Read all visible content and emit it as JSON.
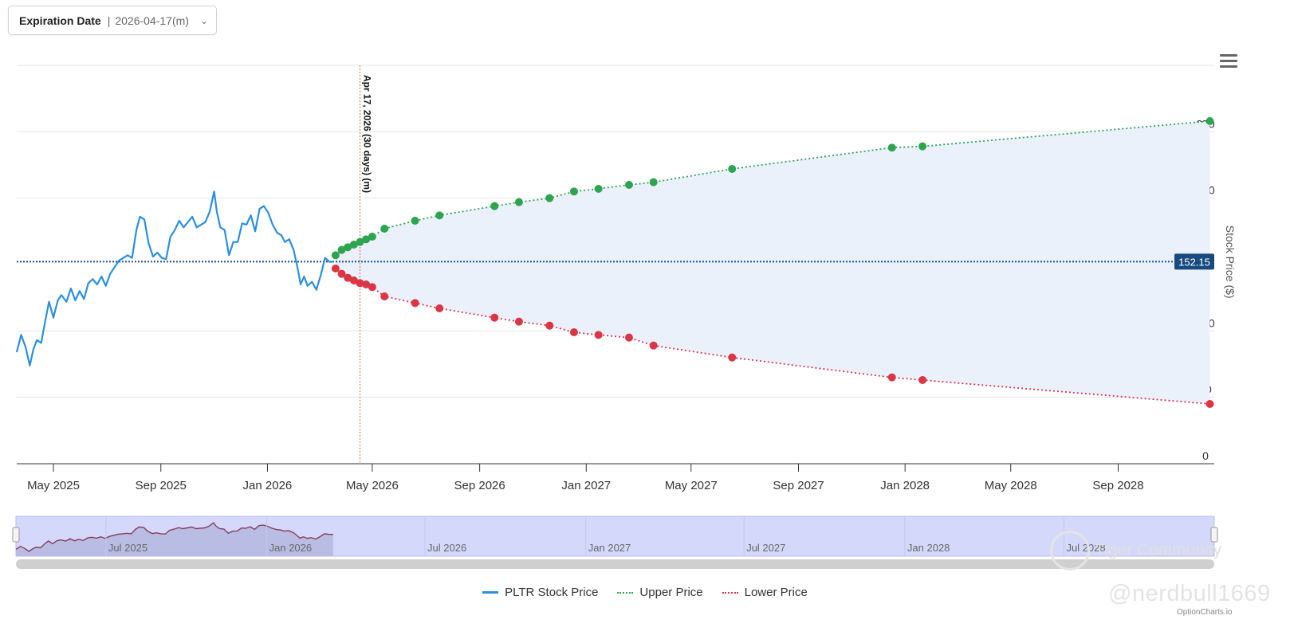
{
  "header": {
    "select_label": "Expiration Date",
    "select_separator": "|",
    "select_value": "2026-04-17(m)"
  },
  "menu_icon": "hamburger-menu-icon",
  "colors": {
    "stock": "#2b8fe0",
    "upper": "#2ea44f",
    "lower": "#dc3545",
    "band_fill": "#eaf1fb",
    "current_line": "#1f4e9a",
    "current_badge": "#184a80",
    "expiry_line": "#e06060",
    "navigator_fill": "#d4d8fb"
  },
  "chart_data": {
    "type": "line",
    "ylabel": "Stock Price ($)",
    "ylim": [
      0,
      300
    ],
    "y_ticks": [
      "0",
      "50",
      "100",
      "200",
      "250"
    ],
    "x_ticks": [
      "May 2025",
      "Sep 2025",
      "Jan 2026",
      "May 2026",
      "Sep 2026",
      "Jan 2027",
      "May 2027",
      "Sep 2027",
      "Jan 2028",
      "May 2028",
      "Sep 2028"
    ],
    "x_range": [
      "2025-03-20",
      "2028-12-20"
    ],
    "current_price": 152.15,
    "current_price_label": "152.15",
    "expiry_marker": {
      "date": "2026-04-17",
      "label": "Apr 17, 2026 (30 days) (m)"
    },
    "series": [
      {
        "name": "PLTR Stock Price",
        "style": "solid",
        "points": [
          [
            "2025-03-20",
            84
          ],
          [
            "2025-03-25",
            97
          ],
          [
            "2025-03-30",
            88
          ],
          [
            "2025-04-04",
            74
          ],
          [
            "2025-04-08",
            86
          ],
          [
            "2025-04-12",
            93
          ],
          [
            "2025-04-17",
            91
          ],
          [
            "2025-04-22",
            109
          ],
          [
            "2025-04-26",
            122
          ],
          [
            "2025-05-01",
            110
          ],
          [
            "2025-05-06",
            123
          ],
          [
            "2025-05-10",
            127
          ],
          [
            "2025-05-16",
            122
          ],
          [
            "2025-05-21",
            132
          ],
          [
            "2025-05-26",
            123
          ],
          [
            "2025-05-31",
            130
          ],
          [
            "2025-06-05",
            124
          ],
          [
            "2025-06-10",
            136
          ],
          [
            "2025-06-15",
            139
          ],
          [
            "2025-06-20",
            135
          ],
          [
            "2025-06-25",
            141
          ],
          [
            "2025-06-30",
            134
          ],
          [
            "2025-07-05",
            143
          ],
          [
            "2025-07-10",
            148
          ],
          [
            "2025-07-15",
            153
          ],
          [
            "2025-07-20",
            155
          ],
          [
            "2025-07-25",
            157
          ],
          [
            "2025-07-30",
            155
          ],
          [
            "2025-08-04",
            176
          ],
          [
            "2025-08-08",
            186
          ],
          [
            "2025-08-13",
            184
          ],
          [
            "2025-08-18",
            166
          ],
          [
            "2025-08-23",
            156
          ],
          [
            "2025-08-28",
            159
          ],
          [
            "2025-09-02",
            155
          ],
          [
            "2025-09-07",
            154
          ],
          [
            "2025-09-12",
            171
          ],
          [
            "2025-09-17",
            176
          ],
          [
            "2025-09-22",
            183
          ],
          [
            "2025-09-27",
            178
          ],
          [
            "2025-10-02",
            182
          ],
          [
            "2025-10-07",
            186
          ],
          [
            "2025-10-12",
            178
          ],
          [
            "2025-10-17",
            180
          ],
          [
            "2025-10-22",
            182
          ],
          [
            "2025-10-27",
            190
          ],
          [
            "2025-11-01",
            205
          ],
          [
            "2025-11-04",
            190
          ],
          [
            "2025-11-08",
            178
          ],
          [
            "2025-11-13",
            176
          ],
          [
            "2025-11-18",
            157
          ],
          [
            "2025-11-23",
            167
          ],
          [
            "2025-11-28",
            167
          ],
          [
            "2025-12-03",
            181
          ],
          [
            "2025-12-08",
            180
          ],
          [
            "2025-12-13",
            187
          ],
          [
            "2025-12-18",
            175
          ],
          [
            "2025-12-23",
            192
          ],
          [
            "2025-12-28",
            194
          ],
          [
            "2026-01-02",
            189
          ],
          [
            "2026-01-07",
            180
          ],
          [
            "2026-01-12",
            174
          ],
          [
            "2026-01-17",
            172
          ],
          [
            "2026-01-21",
            167
          ],
          [
            "2026-01-26",
            169
          ],
          [
            "2026-01-31",
            161
          ],
          [
            "2026-02-04",
            149
          ],
          [
            "2026-02-08",
            135
          ],
          [
            "2026-02-12",
            141
          ],
          [
            "2026-02-16",
            134
          ],
          [
            "2026-02-21",
            137
          ],
          [
            "2026-02-26",
            131
          ],
          [
            "2026-03-03",
            142
          ],
          [
            "2026-03-08",
            155
          ],
          [
            "2026-03-13",
            152
          ],
          [
            "2026-03-18",
            152.15
          ]
        ]
      },
      {
        "name": "Upper Price",
        "style": "dotted",
        "points": [
          [
            "2026-03-20",
            157
          ],
          [
            "2026-03-27",
            161
          ],
          [
            "2026-04-03",
            163
          ],
          [
            "2026-04-10",
            165
          ],
          [
            "2026-04-17",
            167
          ],
          [
            "2026-04-24",
            169
          ],
          [
            "2026-05-01",
            171
          ],
          [
            "2026-05-15",
            177
          ],
          [
            "2026-06-19",
            183
          ],
          [
            "2026-07-17",
            187
          ],
          [
            "2026-09-18",
            194
          ],
          [
            "2026-10-16",
            197
          ],
          [
            "2026-11-20",
            200
          ],
          [
            "2026-12-18",
            205
          ],
          [
            "2027-01-15",
            207
          ],
          [
            "2027-02-19",
            210
          ],
          [
            "2027-03-19",
            212
          ],
          [
            "2027-06-17",
            222
          ],
          [
            "2027-12-17",
            238
          ],
          [
            "2028-01-21",
            239
          ],
          [
            "2028-12-15",
            258
          ]
        ]
      },
      {
        "name": "Lower Price",
        "style": "dotted",
        "points": [
          [
            "2026-03-20",
            147
          ],
          [
            "2026-03-27",
            143
          ],
          [
            "2026-04-03",
            140
          ],
          [
            "2026-04-10",
            138
          ],
          [
            "2026-04-17",
            136
          ],
          [
            "2026-04-24",
            135
          ],
          [
            "2026-05-01",
            133
          ],
          [
            "2026-05-15",
            126
          ],
          [
            "2026-06-19",
            121
          ],
          [
            "2026-07-17",
            117
          ],
          [
            "2026-09-18",
            110
          ],
          [
            "2026-10-16",
            107
          ],
          [
            "2026-11-20",
            104
          ],
          [
            "2026-12-18",
            99
          ],
          [
            "2027-01-15",
            97
          ],
          [
            "2027-02-19",
            95
          ],
          [
            "2027-03-19",
            89
          ],
          [
            "2027-06-17",
            80
          ],
          [
            "2027-12-17",
            65
          ],
          [
            "2028-01-21",
            63
          ],
          [
            "2028-12-15",
            45
          ]
        ]
      }
    ],
    "navigator": {
      "ticks": [
        "Jul 2025",
        "Jan 2026",
        "Jul 2026",
        "Jan 2027",
        "Jul 2027",
        "Jan 2028",
        "Jul 2028"
      ],
      "tick_dates": [
        "2025-07-01",
        "2026-01-01",
        "2026-07-01",
        "2027-01-01",
        "2027-07-01",
        "2028-01-01",
        "2028-07-01"
      ]
    }
  },
  "legend": {
    "stock_label": "PLTR Stock Price",
    "upper_label": "Upper Price",
    "lower_label": "Lower Price"
  },
  "watermarks": {
    "handle": "@nerdbull1669",
    "community": "Tiger Community",
    "credit": "OptionCharts.io"
  }
}
